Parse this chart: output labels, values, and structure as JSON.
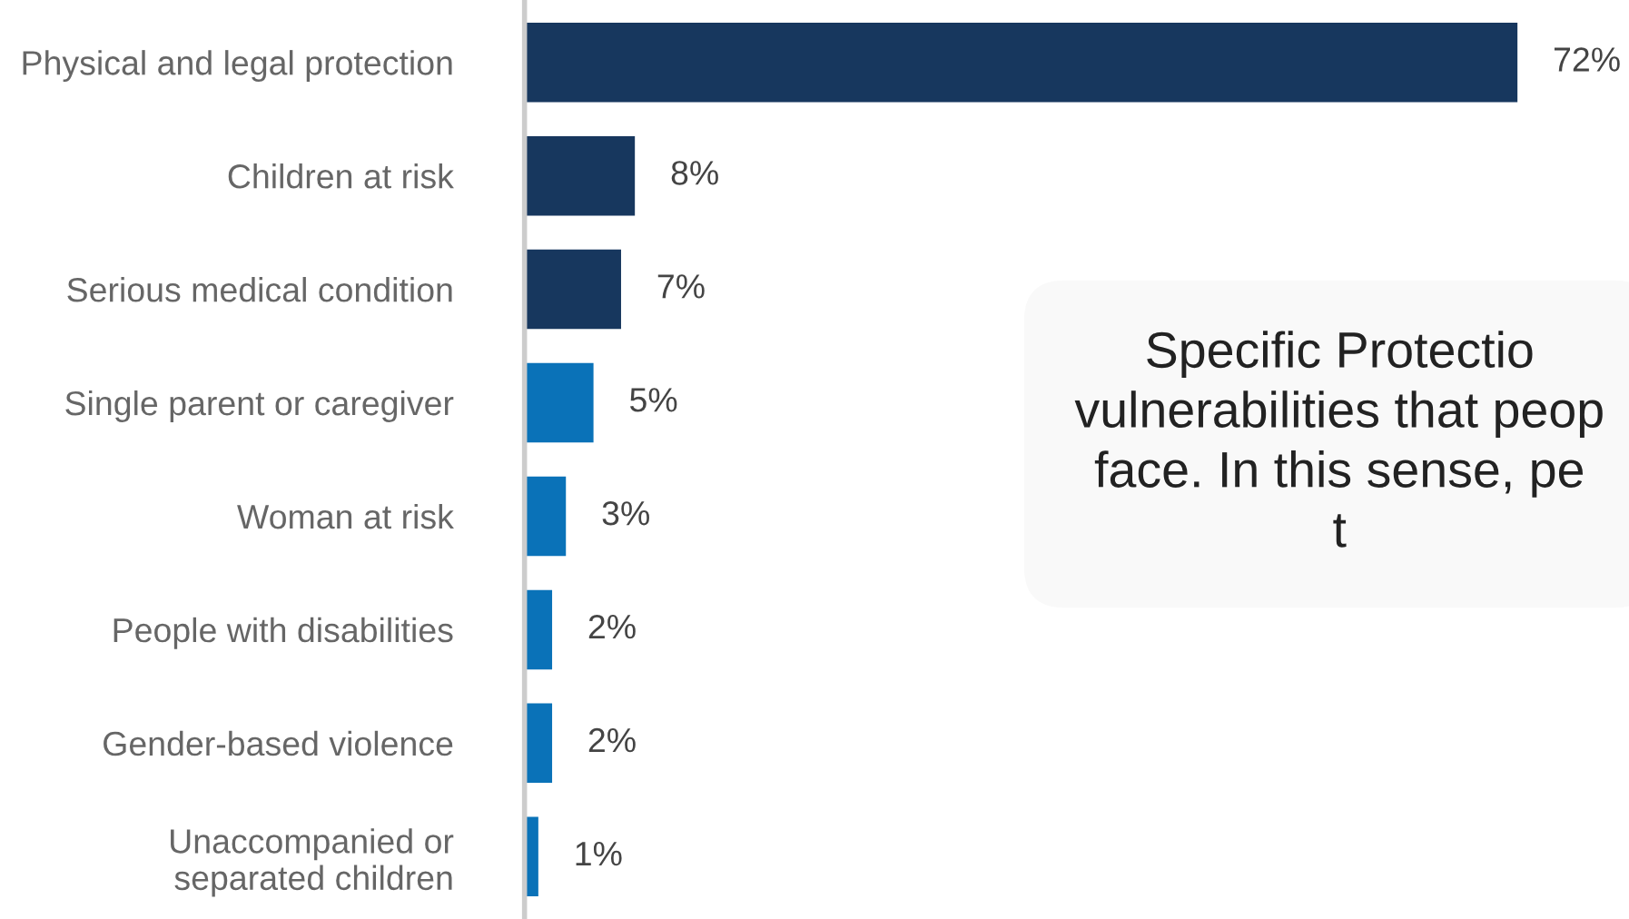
{
  "chart_data": {
    "type": "bar",
    "orientation": "horizontal",
    "categories": [
      "Physical and legal protection",
      "Children at risk",
      "Serious medical condition",
      "Single parent or caregiver",
      "Woman at risk",
      "People with disabilities",
      "Gender-based violence",
      "Unaccompanied or\nseparated children"
    ],
    "values": [
      72,
      8,
      7,
      5,
      3,
      2,
      2,
      1
    ],
    "colors": [
      "#17375e",
      "#17375e",
      "#17375e",
      "#0a72b8",
      "#0a72b8",
      "#0a72b8",
      "#0a72b8",
      "#0a72b8"
    ],
    "value_labels": [
      "72%",
      "8%",
      "7%",
      "5%",
      "3%",
      "2%",
      "2%",
      "1%"
    ],
    "annotations": [
      "Specific Protectio\nvulnerabilities that peop\nface. In this sense, pe\nt"
    ],
    "grid": false,
    "legend": false
  }
}
